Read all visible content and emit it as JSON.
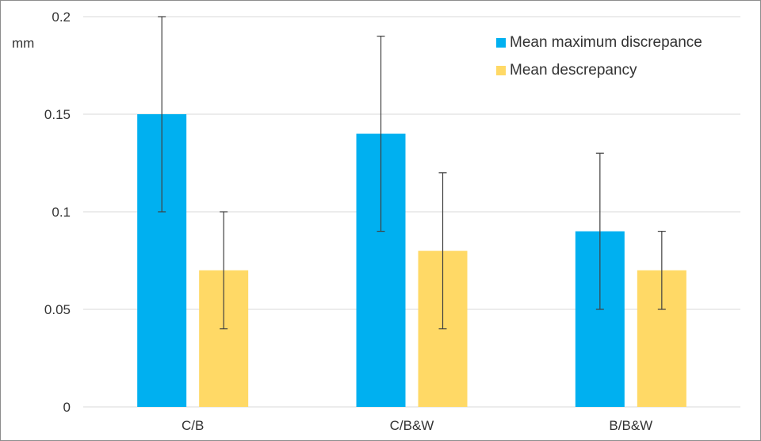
{
  "chart_data": {
    "type": "bar",
    "ylabel": "mm",
    "ylim": [
      0,
      0.2
    ],
    "yticks": [
      0,
      0.05,
      0.1,
      0.15,
      0.2
    ],
    "ytick_labels": [
      "0",
      "0.05",
      "0.1",
      "0.15",
      "0.2"
    ],
    "categories": [
      "C/B",
      "C/B&W",
      "B/B&W"
    ],
    "series": [
      {
        "name": "Mean maximum discrepance",
        "color": "#00B0F0",
        "values": [
          0.15,
          0.14,
          0.09
        ],
        "err_low": [
          0.1,
          0.09,
          0.05
        ],
        "err_high": [
          0.2,
          0.19,
          0.13
        ]
      },
      {
        "name": "Mean descrepancy",
        "color": "#FFD966",
        "values": [
          0.07,
          0.08,
          0.07
        ],
        "err_low": [
          0.04,
          0.04,
          0.05
        ],
        "err_high": [
          0.1,
          0.12,
          0.09
        ]
      }
    ],
    "grid": true,
    "legend_position": "top-right"
  }
}
